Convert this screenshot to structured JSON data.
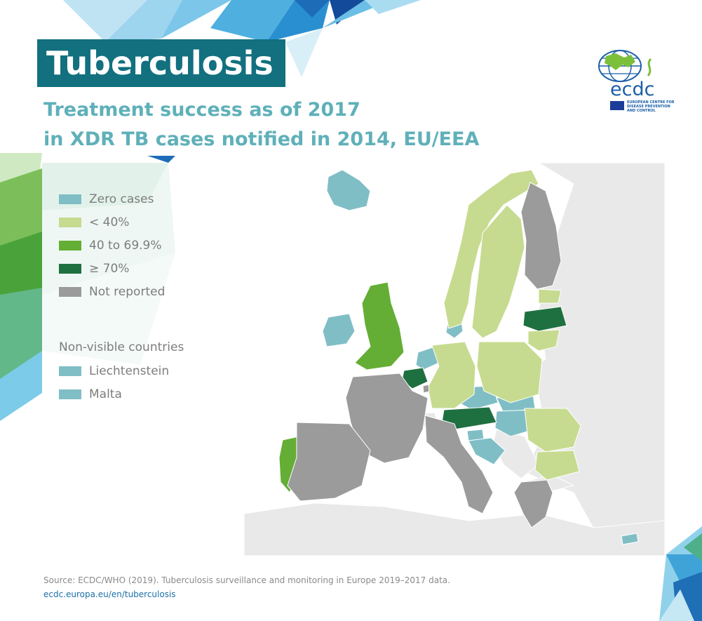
{
  "header": {
    "title": "Tuberculosis",
    "subtitle_line1": "Treatment success as of 2017",
    "subtitle_line2": "in XDR TB cases notified in 2014, EU/EEA"
  },
  "logo": {
    "wordmark": "ecdc",
    "org_line1": "EUROPEAN CENTRE FOR",
    "org_line2": "DISEASE PREVENTION",
    "org_line3": "AND CONTROL"
  },
  "legend": {
    "items": [
      {
        "label": "Zero cases",
        "color": "#80bec6"
      },
      {
        "label": "< 40%",
        "color": "#c6db8f"
      },
      {
        "label": "40 to 69.9%",
        "color": "#64ae35"
      },
      {
        "label": "≥ 70%",
        "color": "#1f7040"
      },
      {
        "label": "Not reported",
        "color": "#9b9b9b"
      }
    ],
    "nonvisible_heading": "Non-visible countries",
    "nonvisible": [
      {
        "label": "Liechtenstein",
        "color": "#80bec6"
      },
      {
        "label": "Malta",
        "color": "#80bec6"
      }
    ]
  },
  "map_data": {
    "categories": {
      "zero": "Zero cases",
      "lt40": "< 40%",
      "40to70": "40 to 69.9%",
      "ge70": "≥ 70%",
      "nr": "Not reported"
    },
    "countries": [
      {
        "name": "Iceland",
        "category": "zero"
      },
      {
        "name": "Ireland",
        "category": "zero"
      },
      {
        "name": "Denmark",
        "category": "zero"
      },
      {
        "name": "Netherlands",
        "category": "zero"
      },
      {
        "name": "Czechia",
        "category": "zero"
      },
      {
        "name": "Slovakia",
        "category": "zero"
      },
      {
        "name": "Hungary",
        "category": "zero"
      },
      {
        "name": "Slovenia",
        "category": "zero"
      },
      {
        "name": "Croatia",
        "category": "zero"
      },
      {
        "name": "Cyprus",
        "category": "zero"
      },
      {
        "name": "Liechtenstein",
        "category": "zero"
      },
      {
        "name": "Malta",
        "category": "zero"
      },
      {
        "name": "Norway",
        "category": "lt40"
      },
      {
        "name": "Sweden",
        "category": "lt40"
      },
      {
        "name": "Estonia",
        "category": "lt40"
      },
      {
        "name": "Lithuania",
        "category": "lt40"
      },
      {
        "name": "Germany",
        "category": "lt40"
      },
      {
        "name": "Poland",
        "category": "lt40"
      },
      {
        "name": "Romania",
        "category": "lt40"
      },
      {
        "name": "Bulgaria",
        "category": "lt40"
      },
      {
        "name": "United Kingdom",
        "category": "40to70"
      },
      {
        "name": "Portugal",
        "category": "40to70"
      },
      {
        "name": "Latvia",
        "category": "ge70"
      },
      {
        "name": "Belgium",
        "category": "ge70"
      },
      {
        "name": "Austria",
        "category": "ge70"
      },
      {
        "name": "Finland",
        "category": "nr"
      },
      {
        "name": "France",
        "category": "nr"
      },
      {
        "name": "Spain",
        "category": "nr"
      },
      {
        "name": "Italy",
        "category": "nr"
      },
      {
        "name": "Greece",
        "category": "nr"
      },
      {
        "name": "Luxembourg",
        "category": "nr"
      }
    ]
  },
  "footer": {
    "source": "Source: ECDC/WHO (2019). Tuberculosis surveillance and monitoring in Europe 2019–2017 data.",
    "link": "ecdc.europa.eu/en/tuberculosis"
  }
}
